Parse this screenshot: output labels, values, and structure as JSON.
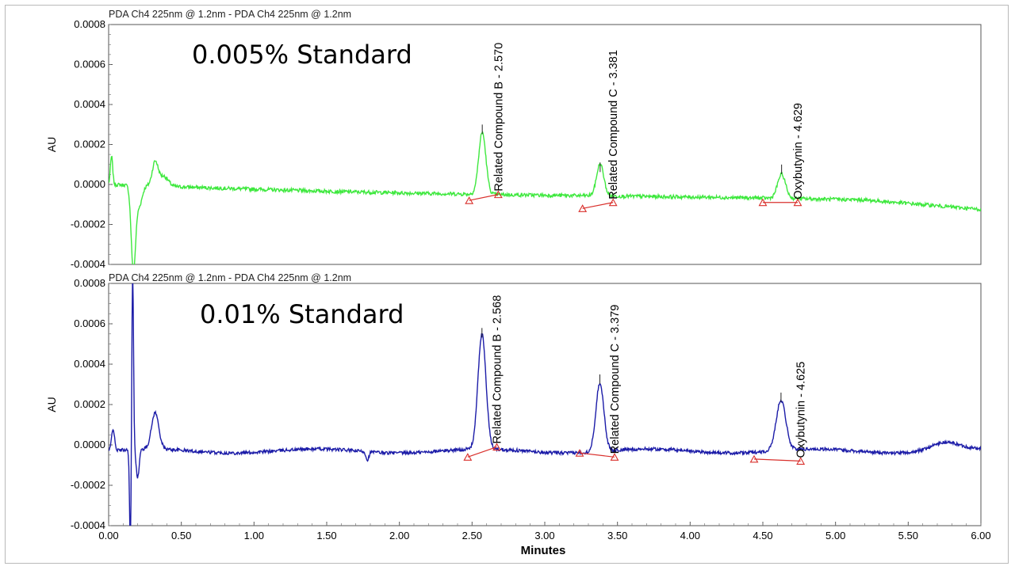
{
  "chart_data": [
    {
      "type": "line",
      "header": "PDA Ch4 225nm @ 1.2nm - PDA Ch4 225nm @ 1.2nm",
      "title": "0.005% Standard",
      "ylabel": "AU",
      "xlabel": "",
      "xlim": [
        0,
        6
      ],
      "ylim": [
        -0.0004,
        0.0008
      ],
      "yticks": [
        "0.0008",
        "0.0006",
        "0.0004",
        "0.0002",
        "0.0000",
        "-0.0002",
        "-0.0004"
      ],
      "color": "#3ee83e",
      "peaks": [
        {
          "label": "Related Compound B - 2.570",
          "rt": 2.57,
          "height": 0.00026,
          "width": 0.045,
          "start": 2.48,
          "end": 2.68,
          "base_start": -8e-05,
          "base_end": -5e-05
        },
        {
          "label": "Related Compound C - 3.381",
          "rt": 3.381,
          "height": 7e-05,
          "width": 0.045,
          "start": 3.26,
          "end": 3.47,
          "base_start": -0.00012,
          "base_end": -9e-05
        },
        {
          "label": "Oxybutynin - 4.629",
          "rt": 4.629,
          "height": 6e-05,
          "width": 0.05,
          "start": 4.5,
          "end": 4.74,
          "base_start": -9e-05,
          "base_end": -9e-05
        }
      ]
    },
    {
      "type": "line",
      "header": "PDA Ch4 225nm @ 1.2nm - PDA Ch4 225nm @ 1.2nm",
      "title": "0.01% Standard",
      "ylabel": "AU",
      "xlabel": "Minutes",
      "xlim": [
        0,
        6
      ],
      "ylim": [
        -0.0004,
        0.0008
      ],
      "xticks": [
        "0.00",
        "0.50",
        "1.00",
        "1.50",
        "2.00",
        "2.50",
        "3.00",
        "3.50",
        "4.00",
        "4.50",
        "5.00",
        "5.50",
        "6.00"
      ],
      "yticks": [
        "0.0008",
        "0.0006",
        "0.0004",
        "0.0002",
        "0.0000",
        "-0.0002",
        "-0.0004"
      ],
      "color": "#1c1ca8",
      "peaks": [
        {
          "label": "Related Compound B - 2.568",
          "rt": 2.568,
          "height": 0.00054,
          "width": 0.05,
          "start": 2.47,
          "end": 2.67,
          "base_start": -6e-05,
          "base_end": -1e-05
        },
        {
          "label": "Related Compound C - 3.379",
          "rt": 3.379,
          "height": 0.00031,
          "width": 0.05,
          "start": 3.24,
          "end": 3.48,
          "base_start": -4e-05,
          "base_end": -6e-05
        },
        {
          "label": "Oxybutynin - 4.625",
          "rt": 4.625,
          "height": 0.00022,
          "width": 0.06,
          "start": 4.44,
          "end": 4.76,
          "base_start": -7e-05,
          "base_end": -8e-05
        }
      ]
    }
  ]
}
